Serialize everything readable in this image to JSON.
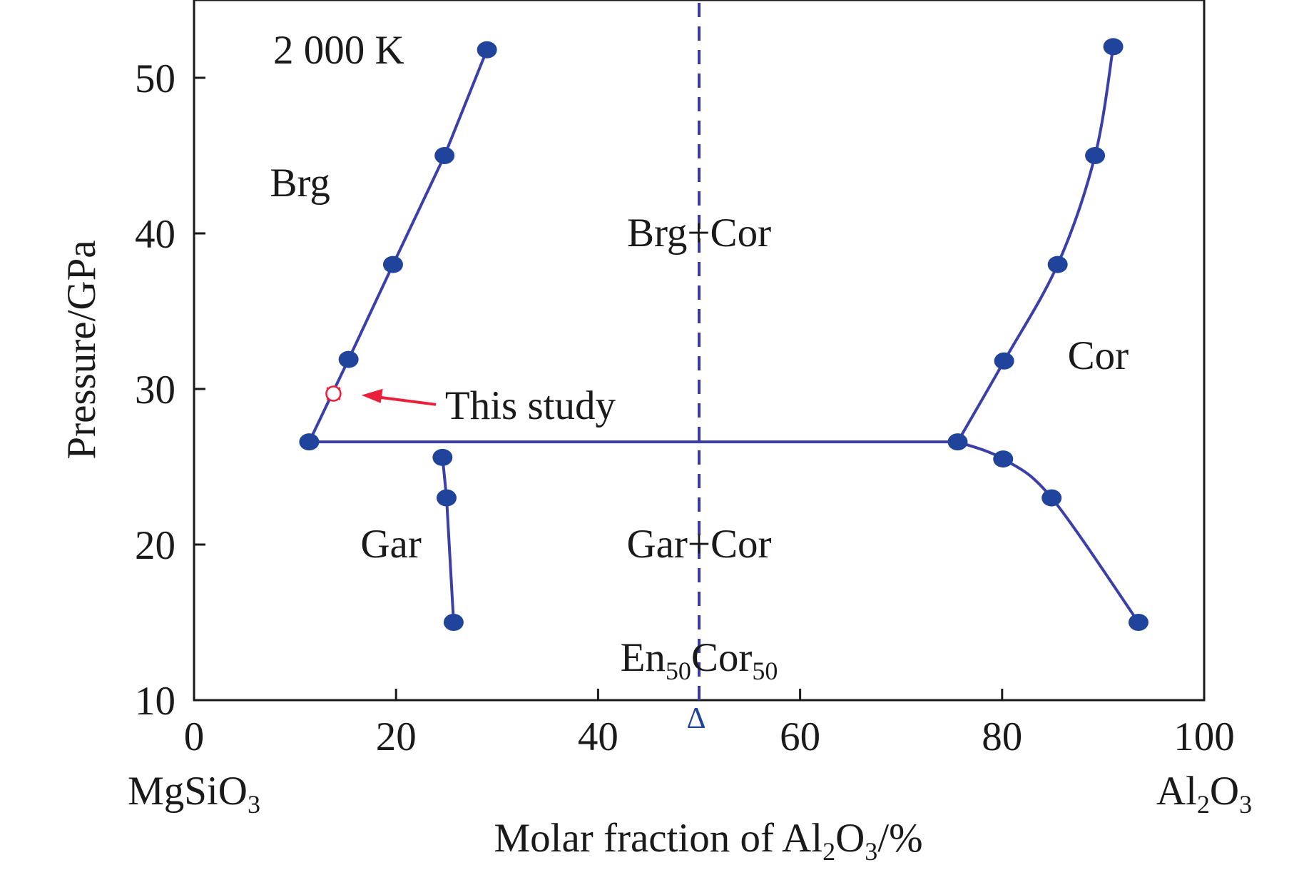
{
  "chart_data": {
    "type": "phase-diagram",
    "title": "",
    "temperature_label": "2 000 K",
    "xlabel": {
      "pre": "Molar fraction of Al",
      "s1": "2",
      "mid": "O",
      "s2": "3",
      "post": "/%"
    },
    "ylabel": "Pressure/GPa",
    "xlim": [
      0,
      100
    ],
    "ylim": [
      10,
      55
    ],
    "x_ticks": [
      0,
      20,
      40,
      60,
      80,
      100
    ],
    "y_ticks": [
      10,
      20,
      30,
      40,
      50
    ],
    "x_tick_labels": [
      "0",
      "20",
      "40",
      "60",
      "80",
      "100"
    ],
    "y_tick_labels": [
      "10",
      "20",
      "30",
      "40",
      "50"
    ],
    "endmember_left": {
      "pre": "MgSiO",
      "sub": "3"
    },
    "endmember_right": {
      "a": "Al",
      "s1": "2",
      "b": "O",
      "s2": "3"
    },
    "composition_marker": {
      "x": 50,
      "symbol": "Δ",
      "label_a": "En",
      "sub_a": "50",
      "label_b": "Cor",
      "sub_b": "50"
    },
    "regions": [
      {
        "label": "Brg",
        "x": 10.5,
        "y": 43.3
      },
      {
        "label": "Brg+Cor",
        "x": 50,
        "y": 40.1
      },
      {
        "label": "Cor",
        "x": 89.5,
        "y": 32.2
      },
      {
        "label": "Gar",
        "x": 19.5,
        "y": 20.1
      },
      {
        "label": "Gar+Cor",
        "x": 50,
        "y": 20.1
      }
    ],
    "series": [
      {
        "id": "brg-boundary",
        "kind": "straight",
        "points": [
          [
            11.4,
            26.6
          ],
          [
            15.3,
            31.9
          ],
          [
            19.7,
            38.0
          ],
          [
            24.8,
            45.0
          ],
          [
            29.0,
            51.8
          ]
        ]
      },
      {
        "id": "gar-boundary",
        "kind": "straight",
        "points": [
          [
            24.6,
            25.6
          ],
          [
            25.0,
            23.0
          ],
          [
            25.7,
            15.0
          ]
        ]
      },
      {
        "id": "cor-upper",
        "kind": "smooth",
        "points": [
          [
            75.6,
            26.6
          ],
          [
            80.2,
            31.8
          ],
          [
            85.5,
            38.0
          ],
          [
            89.2,
            45.0
          ],
          [
            91.0,
            52.0
          ]
        ]
      },
      {
        "id": "cor-lower",
        "kind": "smooth",
        "points": [
          [
            75.6,
            26.6
          ],
          [
            80.1,
            25.5
          ],
          [
            84.9,
            23.0
          ],
          [
            93.5,
            15.0
          ]
        ]
      },
      {
        "id": "eutectoid-line",
        "kind": "straight",
        "points": [
          [
            11.4,
            26.6
          ],
          [
            75.6,
            26.6
          ]
        ]
      }
    ],
    "dashed_line": {
      "x": 50,
      "y_from": 10,
      "y_to": 55
    },
    "this_study": {
      "label": "This study",
      "x": 13.8,
      "y": 29.7,
      "xerr": 0.6,
      "label_at": [
        24.5,
        29.0
      ],
      "arrow_to": [
        15.3,
        29.6
      ]
    },
    "colors": {
      "line": "#3b3fa8",
      "marker": "#20449b",
      "dashed": "#3a3aa0",
      "highlight": "#e8203a",
      "axis": "#1a1a1a"
    }
  }
}
